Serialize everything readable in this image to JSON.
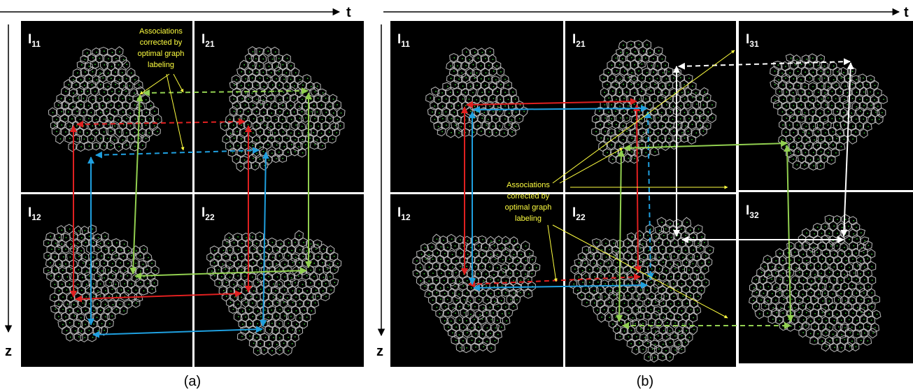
{
  "axes": {
    "a": {
      "x_label": "t",
      "y_label": "z"
    },
    "b": {
      "x_label": "t",
      "y_label": "z"
    }
  },
  "panels": {
    "a": [
      {
        "main": "I",
        "sub": "11"
      },
      {
        "main": "I",
        "sub": "21"
      },
      {
        "main": "I",
        "sub": "12"
      },
      {
        "main": "I",
        "sub": "22"
      }
    ],
    "b": [
      {
        "main": "I",
        "sub": "11"
      },
      {
        "main": "I",
        "sub": "21"
      },
      {
        "main": "I",
        "sub": "31"
      },
      {
        "main": "I",
        "sub": "12"
      },
      {
        "main": "I",
        "sub": "22"
      },
      {
        "main": "I",
        "sub": "32"
      }
    ]
  },
  "annotations": {
    "a": [
      "Associations",
      "corrected  by",
      "optimal graph",
      "labeling"
    ],
    "b": [
      "Associations",
      "corrected  by",
      "optimal graph",
      "labeling"
    ]
  },
  "captions": [
    "(a)",
    "(b)"
  ]
}
